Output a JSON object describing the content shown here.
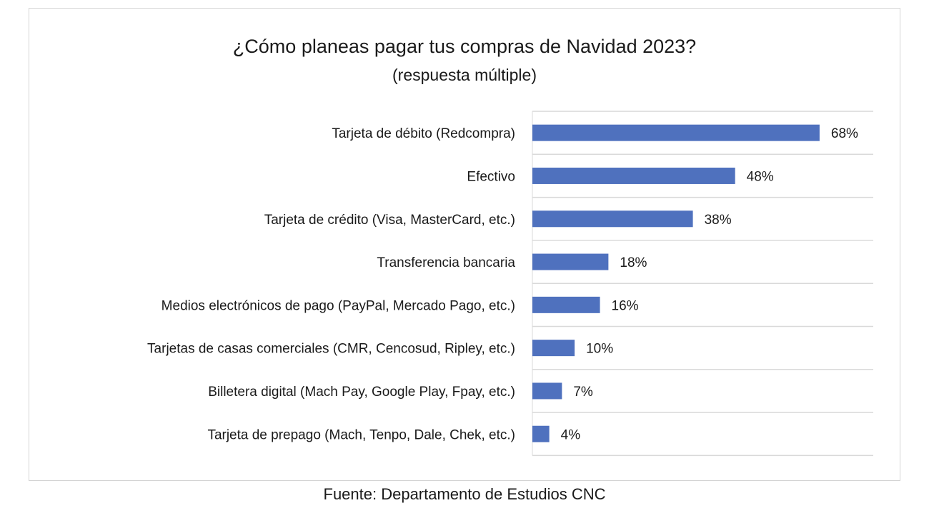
{
  "chart_data": {
    "type": "bar",
    "orientation": "horizontal",
    "title": "¿Cómo planeas pagar tus compras de Navidad 2023?",
    "subtitle": "(respuesta múltiple)",
    "categories": [
      "Tarjeta de débito (Redcompra)",
      "Efectivo",
      "Tarjeta de crédito (Visa, MasterCard, etc.)",
      "Transferencia bancaria",
      "Medios electrónicos de pago (PayPal, Mercado Pago, etc.)",
      "Tarjetas de casas comerciales (CMR, Cencosud, Ripley, etc.)",
      "Billetera digital (Mach Pay, Google Play, Fpay, etc.)",
      "Tarjeta de prepago (Mach, Tenpo, Dale, Chek, etc.)"
    ],
    "values": [
      68,
      48,
      38,
      18,
      16,
      10,
      7,
      4
    ],
    "value_labels": [
      "68%",
      "48%",
      "38%",
      "18%",
      "16%",
      "10%",
      "7%",
      "4%"
    ],
    "unit": "%",
    "xlim": [
      0,
      100
    ],
    "grid": true,
    "legend": "none",
    "bar_color": "#4f71be"
  },
  "footer": {
    "source": "Fuente: Departamento de Estudios CNC"
  }
}
